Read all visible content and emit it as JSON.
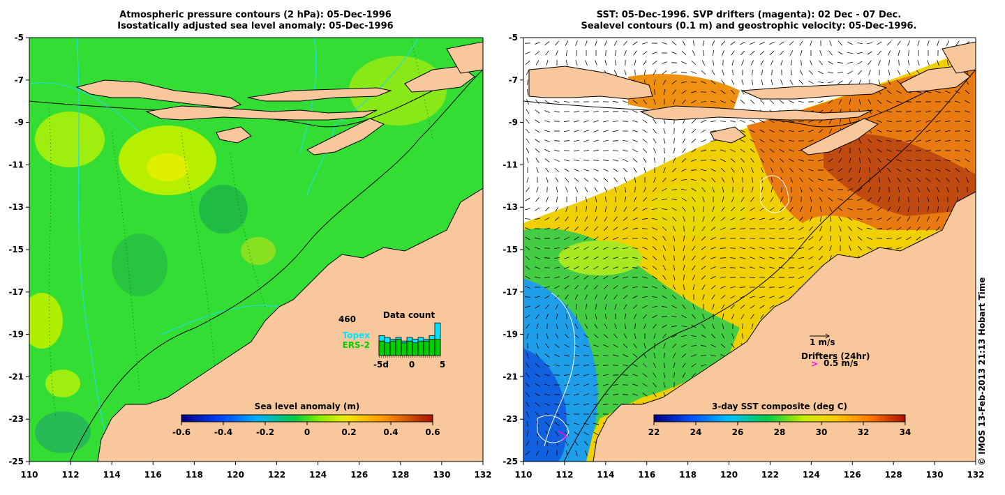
{
  "left_panel": {
    "title_line1": "Atmospheric pressure contours (2 hPa): 05-Dec-1996",
    "title_line2": "Isostatically adjusted sea level anomaly: 05-Dec-1996",
    "colorbar_title": "Sea level anomaly (m)",
    "colorbar_ticks": [
      "-0.6",
      "-0.4",
      "-0.2",
      "0",
      "0.2",
      "0.4",
      "0.6"
    ],
    "inset": {
      "title": "Data count",
      "max_label": "460",
      "series1": "Topex",
      "series2": "ERS-2",
      "x_ticks": [
        "-5d",
        "0",
        "5"
      ],
      "series1_color": "#00e5ff",
      "series2_color": "#00cc00"
    }
  },
  "right_panel": {
    "title_line1": "SST: 05-Dec-1996. SVP drifters (magenta): 02 Dec - 07 Dec.",
    "title_line2": "Sealevel contours (0.1 m) and geostrophic velocity: 05-Dec-1996.",
    "colorbar_title": "3-day SST composite (deg C)",
    "colorbar_ticks": [
      "22",
      "24",
      "26",
      "28",
      "30",
      "32",
      "34"
    ],
    "velocity_scale": "1 m/s",
    "drifter_title": "Drifters (24hr)",
    "drifter_scale": "0.5 m/s",
    "drifter_symbol": ">"
  },
  "axes": {
    "y_ticks": [
      "-5",
      "-7",
      "-9",
      "-11",
      "-13",
      "-15",
      "-17",
      "-19",
      "-21",
      "-23",
      "-25"
    ],
    "x_ticks": [
      "110",
      "112",
      "114",
      "116",
      "118",
      "120",
      "122",
      "124",
      "126",
      "128",
      "130",
      "132"
    ],
    "lat_range": [
      -25,
      -5
    ],
    "lon_range": [
      110,
      132
    ]
  },
  "copyright": "© IMOS 13-Feb-2013 21:13 Hobart Time",
  "colors": {
    "land": "#f8c89c",
    "ocean_green": "#33dd33",
    "coast": "#000000",
    "pressure_contour": "#22dddd"
  }
}
